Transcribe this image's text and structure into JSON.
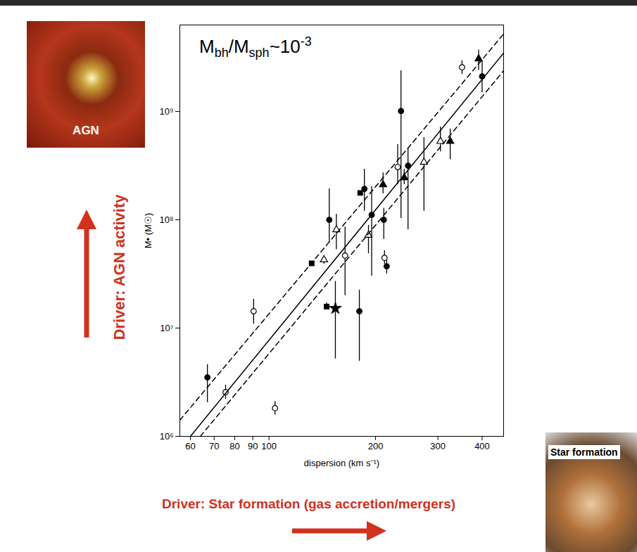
{
  "chart_data": {
    "type": "scatter",
    "x_label": "dispersion (km s⁻¹)",
    "y_label": "M• (M☉)",
    "log": true,
    "grid": false,
    "xlim": [
      56,
      460
    ],
    "ylim": [
      1000000,
      6300000000
    ],
    "xticks": [
      60,
      70,
      80,
      90,
      100,
      200,
      300,
      400
    ],
    "yticks": [
      {
        "value": 1000000,
        "label": "10⁶"
      },
      {
        "value": 10000000,
        "label": "10⁷"
      },
      {
        "value": 100000000,
        "label": "10⁸"
      },
      {
        "value": 1000000000,
        "label": "10⁹"
      }
    ],
    "annotations": [
      {
        "text": [
          {
            "t": "M"
          },
          {
            "t": "bh",
            "sub": true
          },
          {
            "t": "/M"
          },
          {
            "t": "sph",
            "sub": true
          },
          {
            "t": "~10"
          },
          {
            "t": "-3",
            "sup": true
          }
        ]
      }
    ],
    "series": [
      {
        "type": "scatter",
        "marker": "circle",
        "color": "#000000",
        "x": [
          67,
          148,
          180,
          186,
          195,
          211,
          215,
          236,
          247,
          400
        ],
        "values": [
          3500000.0,
          100000000.0,
          14300000.0,
          193000000.0,
          111000000.0,
          100000000.0,
          37200000.0,
          1010000000.0,
          316000000.0,
          2110000000.0
        ],
        "error_low": [
          2050000.0,
          61000000.0,
          4950000.0,
          120000000.0,
          30300000.0,
          66000000.0,
          31600000.0,
          103000000.0,
          81000000.0,
          1500000000.0
        ],
        "error_high": [
          4600000.0,
          193000000.0,
          22400000.0,
          294000000.0,
          202000000.0,
          128000000.0,
          42700000.0,
          2380000000.0,
          460000000.0,
          2950000000.0
        ]
      },
      {
        "type": "scatter",
        "marker": "circle-open",
        "color": "#000000",
        "x": [
          75.4,
          90.5,
          104,
          164,
          212,
          231,
          351
        ],
        "values": [
          2560000.0,
          14300000.0,
          1820000.0,
          46700000.0,
          44500000.0,
          307000000.0,
          2560000000.0
        ],
        "error_low": [
          2200000.0,
          10900000.0,
          1570000.0,
          20000000.0,
          39000000.0,
          211000000.0,
          2200000000.0
        ],
        "error_high": [
          2980000.0,
          18500000.0,
          2100000.0,
          86000000.0,
          52000000.0,
          495000000.0,
          2950000000.0
        ]
      },
      {
        "type": "scatter",
        "marker": "square",
        "color": "#000000",
        "x": [
          132,
          145.5,
          181
        ],
        "values": [
          39600000.0,
          15800000.0,
          177000000.0
        ],
        "error_low": [
          38000000.0,
          14800000.0,
          169000000.0
        ],
        "error_high": [
          41000000.0,
          17100000.0,
          185000000.0
        ]
      },
      {
        "type": "scatter",
        "marker": "triangle",
        "color": "#000000",
        "x": [
          210,
          241,
          325,
          391
        ],
        "values": [
          211000000.0,
          245000000.0,
          530000000.0,
          3070000000.0
        ],
        "error_low": [
          174000000.0,
          211000000.0,
          360000000.0,
          2400000000.0
        ],
        "error_high": [
          272000000.0,
          294000000.0,
          690000000.0,
          3700000000.0
        ]
      },
      {
        "type": "scatter",
        "marker": "triangle-open",
        "color": "#000000",
        "x": [
          143,
          155,
          191,
          274,
          305
        ],
        "values": [
          42700000.0,
          81000000.0,
          72000000.0,
          340000000.0,
          530000000.0
        ],
        "error_low": [
          39000000.0,
          53000000.0,
          48700000.0,
          120000000.0,
          425000000.0
        ],
        "error_high": [
          46700000.0,
          113000000.0,
          89000000.0,
          575000000.0,
          720000000.0
        ]
      },
      {
        "type": "scatter",
        "marker": "star",
        "color": "#000000",
        "x": [
          154
        ],
        "values": [
          15200000.0
        ],
        "error_low": [
          5200000.0
        ],
        "error_high": [
          27000000.0
        ]
      },
      {
        "type": "line",
        "line_style": "solid",
        "color": "#000000",
        "x": [
          60,
          460
        ],
        "values": [
          1000000.0,
          3460000000.0
        ]
      },
      {
        "type": "line",
        "line_style": "dashed",
        "color": "#000000",
        "x": [
          56,
          460
        ],
        "values": [
          1410000.0,
          5200000000.0
        ]
      },
      {
        "type": "line",
        "line_style": "dashed",
        "color": "#000000",
        "x": [
          64,
          460
        ],
        "values": [
          1000000.0,
          2380000000.0
        ]
      }
    ]
  },
  "slide": {
    "left_image_label": "AGN",
    "right_image_label": "Star formation",
    "vertical_driver": "Driver: AGN activity",
    "horizontal_driver": "Driver: Star formation (gas accretion/mergers)"
  }
}
